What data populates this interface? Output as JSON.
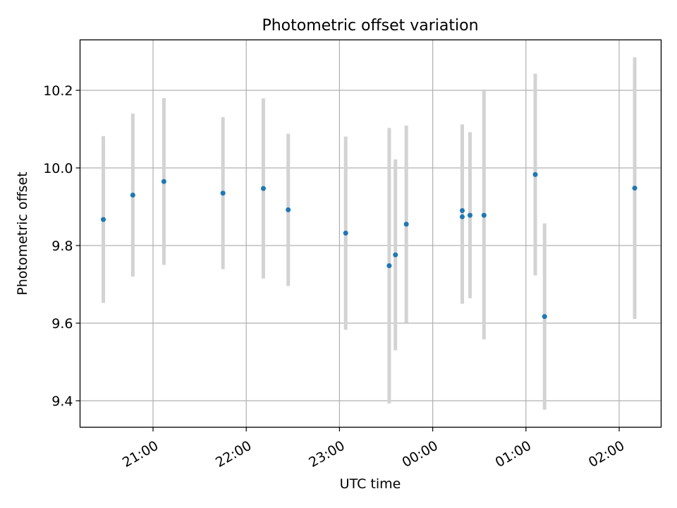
{
  "chart_data": {
    "type": "scatter",
    "title": "Photometric offset variation",
    "xlabel": "UTC time",
    "ylabel": "Photometric offset",
    "x_type": "time",
    "x_ticks": [
      "21:00",
      "22:00",
      "23:00",
      "00:00",
      "01:00",
      "02:00"
    ],
    "y_ticks": [
      "9.4",
      "9.6",
      "9.8",
      "10.0",
      "10.2"
    ],
    "ylim": [
      9.33,
      10.33
    ],
    "grid": true,
    "marker_color": "#1f77b4",
    "errorbar_color": "#d3d3d3",
    "points": [
      {
        "time": "20:28",
        "y": 9.867,
        "err": 0.215
      },
      {
        "time": "20:47",
        "y": 9.93,
        "err": 0.21
      },
      {
        "time": "21:07",
        "y": 9.965,
        "err": 0.215
      },
      {
        "time": "21:45",
        "y": 9.935,
        "err": 0.196
      },
      {
        "time": "22:11",
        "y": 9.947,
        "err": 0.232
      },
      {
        "time": "22:27",
        "y": 9.892,
        "err": 0.196
      },
      {
        "time": "23:04",
        "y": 9.832,
        "err": 0.249
      },
      {
        "time": "23:32",
        "y": 9.748,
        "err": 0.355
      },
      {
        "time": "23:36",
        "y": 9.776,
        "err": 0.246
      },
      {
        "time": "23:43",
        "y": 9.855,
        "err": 0.254
      },
      {
        "time": "00:19",
        "y": 9.874,
        "err": 0.224
      },
      {
        "time": "00:19",
        "y": 9.89,
        "err": 0.222
      },
      {
        "time": "00:24",
        "y": 9.878,
        "err": 0.214
      },
      {
        "time": "00:33",
        "y": 9.878,
        "err": 0.32
      },
      {
        "time": "01:06",
        "y": 9.983,
        "err": 0.26
      },
      {
        "time": "01:12",
        "y": 9.617,
        "err": 0.24
      },
      {
        "time": "02:10",
        "y": 9.948,
        "err": 0.337
      }
    ]
  }
}
